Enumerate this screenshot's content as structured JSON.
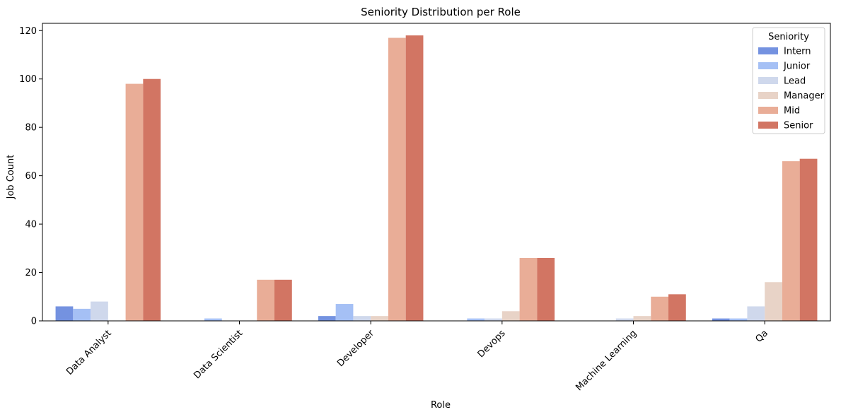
{
  "chart_data": {
    "type": "bar",
    "title": "Seniority Distribution per Role",
    "xlabel": "Role",
    "ylabel": "Job Count",
    "ylim": [
      0,
      123
    ],
    "yticks": [
      0,
      20,
      40,
      60,
      80,
      100,
      120
    ],
    "categories": [
      "Data Analyst",
      "Data Scientist",
      "Developer",
      "Devops",
      "Machine Learning",
      "Qa"
    ],
    "legend": {
      "title": "Seniority",
      "position": "top-right"
    },
    "grid": false,
    "series": [
      {
        "name": "Intern",
        "color": "#7492e0",
        "values": [
          6,
          0,
          2,
          0,
          0,
          1
        ]
      },
      {
        "name": "Junior",
        "color": "#a5c0f5",
        "values": [
          5,
          1,
          7,
          1,
          0,
          1
        ]
      },
      {
        "name": "Lead",
        "color": "#cfd8ec",
        "values": [
          8,
          0,
          2,
          1,
          1,
          6
        ]
      },
      {
        "name": "Manager",
        "color": "#e8d3c7",
        "values": [
          0,
          0,
          2,
          4,
          2,
          16
        ]
      },
      {
        "name": "Mid",
        "color": "#e9ad97",
        "values": [
          98,
          17,
          117,
          26,
          10,
          66
        ]
      },
      {
        "name": "Senior",
        "color": "#d27563",
        "values": [
          100,
          17,
          118,
          26,
          11,
          67
        ]
      }
    ]
  }
}
